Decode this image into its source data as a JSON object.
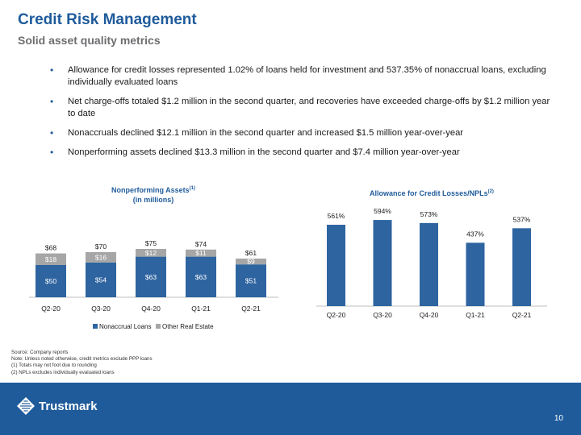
{
  "header": {
    "title": "Credit Risk Management",
    "subtitle": "Solid asset quality metrics"
  },
  "bullets": [
    "Allowance for credit losses represented 1.02% of loans held for investment and 537.35% of nonaccrual loans, excluding individually evaluated loans",
    "Net charge-offs totaled $1.2 million in the second quarter, and recoveries have exceeded charge-offs by $1.2 million year to date",
    "Nonaccruals declined $12.1 million in the second quarter and increased $1.5 million year-over-year",
    "Nonperforming assets declined $13.3 million in the second quarter and $7.4 million year-over-year"
  ],
  "chart_data": [
    {
      "type": "bar",
      "stacked": true,
      "title": "Nonperforming Assets",
      "title_sup": "(1)",
      "subtitle": "(in millions)",
      "categories": [
        "Q2-20",
        "Q3-20",
        "Q4-20",
        "Q1-21",
        "Q2-21"
      ],
      "series": [
        {
          "name": "Nonaccrual Loans",
          "values": [
            50,
            54,
            63,
            63,
            51
          ],
          "labels": [
            "$50",
            "$54",
            "$63",
            "$63",
            "$51"
          ],
          "color": "#2e64a0"
        },
        {
          "name": "Other Real Estate",
          "values": [
            18,
            16,
            12,
            11,
            9
          ],
          "labels": [
            "$18",
            "$16",
            "$12",
            "$11",
            "$9"
          ],
          "color": "#a6a6a6"
        }
      ],
      "totals": [
        "$68",
        "$70",
        "$75",
        "$74",
        "$61"
      ],
      "legend": "bottom"
    },
    {
      "type": "bar",
      "title": "Allowance for Credit Losses/NPLs",
      "title_sup": "(2)",
      "categories": [
        "Q2-20",
        "Q3-20",
        "Q4-20",
        "Q1-21",
        "Q2-21"
      ],
      "values": [
        561,
        594,
        573,
        437,
        537
      ],
      "labels": [
        "561%",
        "594%",
        "573%",
        "437%",
        "537%"
      ],
      "color": "#2e64a0"
    }
  ],
  "footnotes": [
    "Source: Company reports",
    "Note: Unless noted otherwise, credit metrics exclude PPP loans",
    "(1) Totals may not foot due to rounding",
    "(2) NPLs excludes individually evaluated loans"
  ],
  "footer": {
    "logo_text": "Trustmark",
    "page_number": "10",
    "logo_icon": "trustmark-logo-icon"
  }
}
